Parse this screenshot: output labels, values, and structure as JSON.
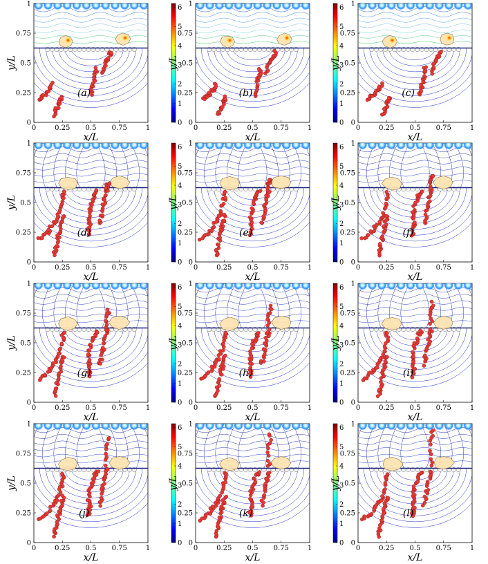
{
  "figure": {
    "grid": {
      "rows": 4,
      "cols": 3
    },
    "x_axis": {
      "label": "x/L",
      "ticks": [
        "0",
        "0.25",
        "0.5",
        "0.75",
        "1"
      ],
      "range": [
        0,
        1
      ]
    },
    "y_axis": {
      "label": "y/L",
      "ticks": [
        "0",
        "0.25",
        "0.5",
        "0.75",
        "1"
      ],
      "range": [
        0,
        1
      ]
    },
    "colorbar": {
      "ticks": [
        "0",
        "1",
        "2",
        "3",
        "4",
        "5",
        "6"
      ],
      "range": [
        0,
        6.2
      ],
      "colormap": "jet"
    },
    "interface_y": 0.625,
    "colors": {
      "particle": "#e53935",
      "particle_edge": "#7a1010",
      "blob": "#fde4b2",
      "blob_edge": "#8a6a3a",
      "interface": "#1a237e",
      "contour_low": "#1f2fc8"
    },
    "panels": [
      {
        "label": "(a)",
        "row": 0,
        "col": 0,
        "stage": 0
      },
      {
        "label": "(b)",
        "row": 0,
        "col": 1,
        "stage": 1
      },
      {
        "label": "(c)",
        "row": 0,
        "col": 2,
        "stage": 2
      },
      {
        "label": "(d)",
        "row": 1,
        "col": 0,
        "stage": 3
      },
      {
        "label": "(e)",
        "row": 1,
        "col": 1,
        "stage": 4
      },
      {
        "label": "(f)",
        "row": 1,
        "col": 2,
        "stage": 5
      },
      {
        "label": "(g)",
        "row": 2,
        "col": 0,
        "stage": 6
      },
      {
        "label": "(h)",
        "row": 2,
        "col": 1,
        "stage": 7
      },
      {
        "label": "(i)",
        "row": 2,
        "col": 2,
        "stage": 8
      },
      {
        "label": "(j)",
        "row": 3,
        "col": 0,
        "stage": 9
      },
      {
        "label": "(k)",
        "row": 3,
        "col": 1,
        "stage": 10
      },
      {
        "label": "(l)",
        "row": 3,
        "col": 2,
        "stage": 11
      }
    ]
  }
}
